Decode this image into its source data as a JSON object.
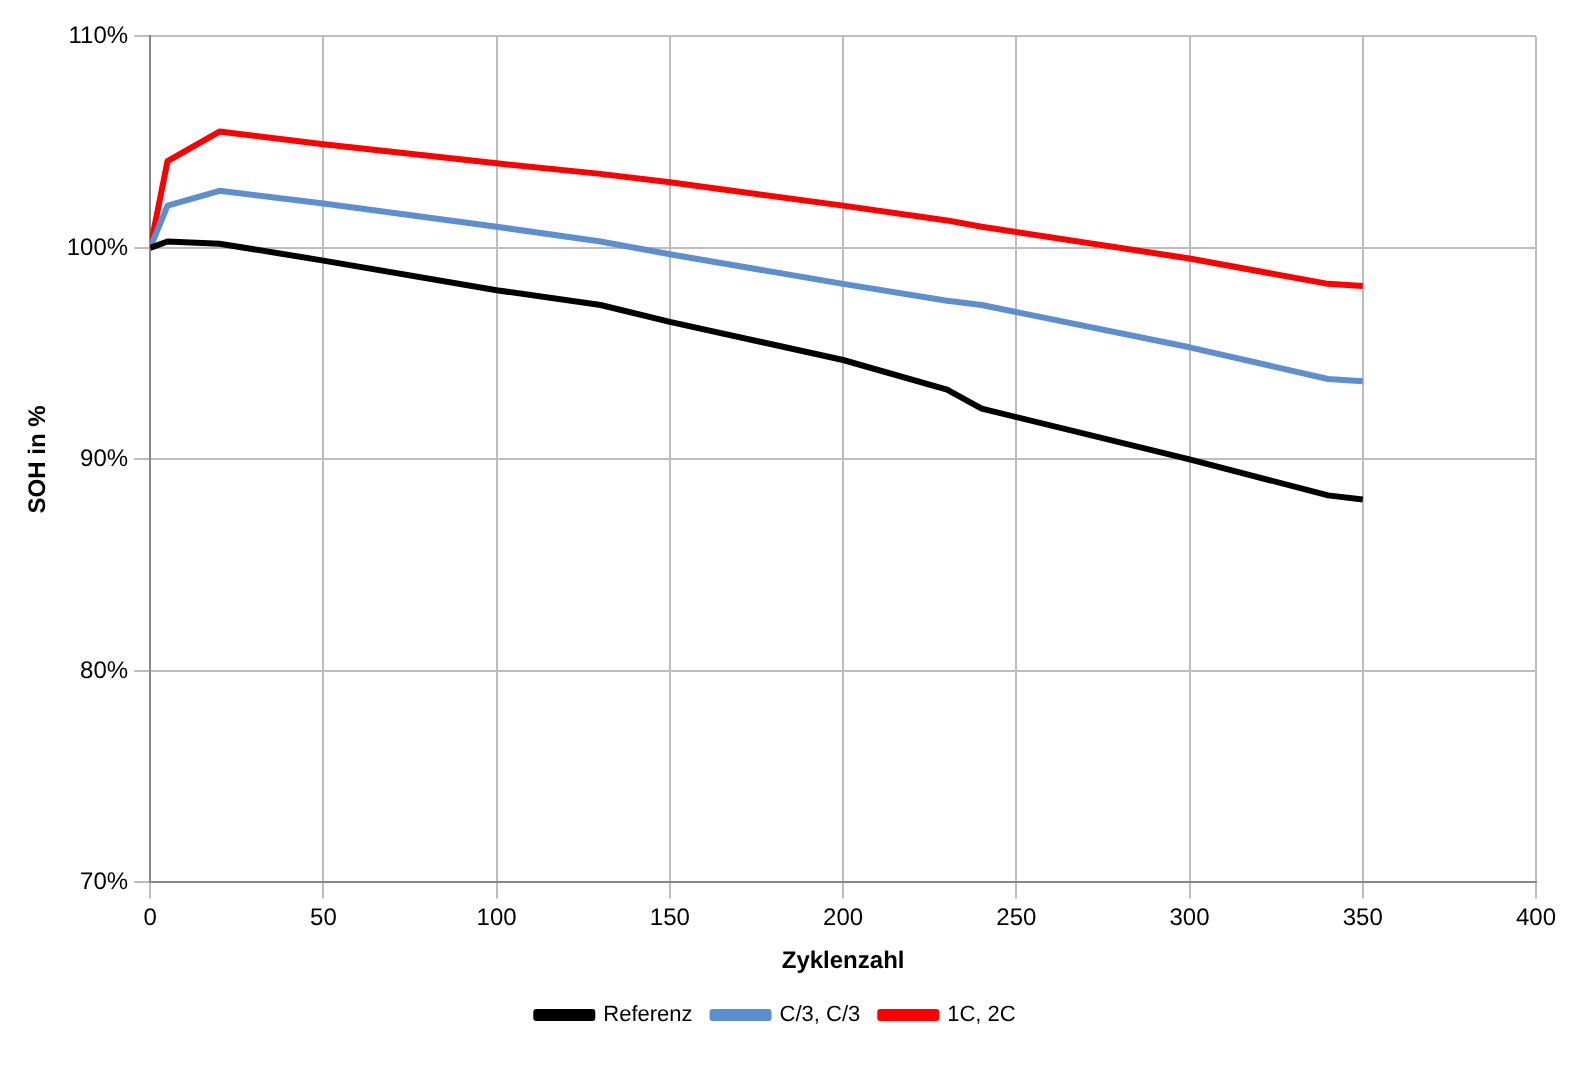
{
  "chart_data": {
    "type": "line",
    "xlabel": "Zyklenzahl",
    "ylabel": "SOH in %",
    "x": [
      0,
      5,
      20,
      50,
      100,
      130,
      150,
      200,
      230,
      240,
      300,
      340,
      350
    ],
    "series": [
      {
        "name": "Referenz",
        "color": "#000000",
        "values": [
          100,
          100.3,
          100.2,
          99.4,
          98.0,
          97.3,
          96.5,
          94.7,
          93.3,
          92.4,
          90.0,
          88.3,
          88.1
        ]
      },
      {
        "name": "C/3, C/3",
        "color": "#5b8fd0",
        "values": [
          100,
          102.0,
          102.7,
          102.1,
          101.0,
          100.3,
          99.7,
          98.3,
          97.5,
          97.3,
          95.3,
          93.8,
          93.7
        ]
      },
      {
        "name": "1C, 2C",
        "color": "#ff0000",
        "values": [
          100,
          104.1,
          105.5,
          104.9,
          104.0,
          103.5,
          103.1,
          102.0,
          101.3,
          101.0,
          99.5,
          98.3,
          98.2
        ]
      }
    ],
    "xlim": [
      0,
      400
    ],
    "xticks": [
      0,
      50,
      100,
      150,
      200,
      250,
      300,
      350,
      400
    ],
    "ylim": [
      70,
      110
    ],
    "yticks": [
      {
        "value": 70,
        "label": "70%"
      },
      {
        "value": 80,
        "label": "80%"
      },
      {
        "value": 90,
        "label": "90%"
      },
      {
        "value": 100,
        "label": "100%"
      },
      {
        "value": 110,
        "label": "110%"
      }
    ],
    "grid": true,
    "legend": "bottom",
    "marker": "none",
    "line_style": "solid"
  }
}
